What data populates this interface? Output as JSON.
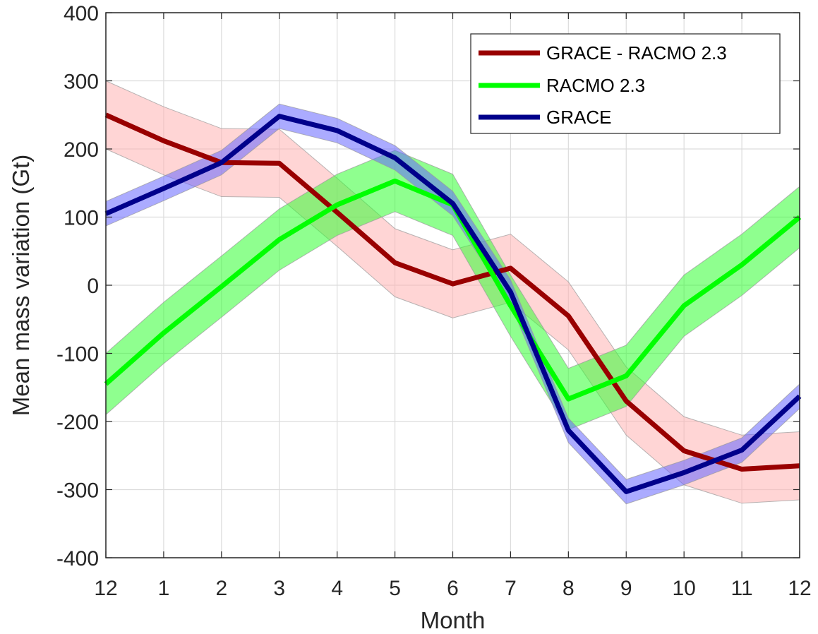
{
  "chart_data": {
    "type": "line",
    "x_tick_labels": [
      "12",
      "1",
      "2",
      "3",
      "4",
      "5",
      "6",
      "7",
      "8",
      "9",
      "10",
      "11",
      "12"
    ],
    "y_ticks": [
      -400,
      -300,
      -200,
      -100,
      0,
      100,
      200,
      300,
      400
    ],
    "ylim": [
      -400,
      400
    ],
    "xlabel": "Month",
    "ylabel": "Mean mass variation (Gt)",
    "grid": true,
    "legend_position": "top-right",
    "series": [
      {
        "name": "GRACE - RACMO 2.3",
        "color": "#990000",
        "band_color": "#ffb3b3",
        "values": [
          250,
          212,
          180,
          179,
          107,
          33,
          2,
          25,
          -45,
          -170,
          -243,
          -270,
          -265
        ],
        "band": 50
      },
      {
        "name": "RACMO 2.3",
        "color": "#00ff00",
        "band_color": "#33ff33",
        "values": [
          -145,
          -70,
          -2,
          67,
          118,
          153,
          118,
          -30,
          -167,
          -133,
          -30,
          30,
          100
        ],
        "band": 45
      },
      {
        "name": "GRACE",
        "color": "#00008b",
        "band_color": "#6666ff",
        "values": [
          105,
          142,
          180,
          248,
          227,
          187,
          120,
          -10,
          -213,
          -303,
          -275,
          -242,
          -163
        ],
        "band": 18
      }
    ]
  }
}
